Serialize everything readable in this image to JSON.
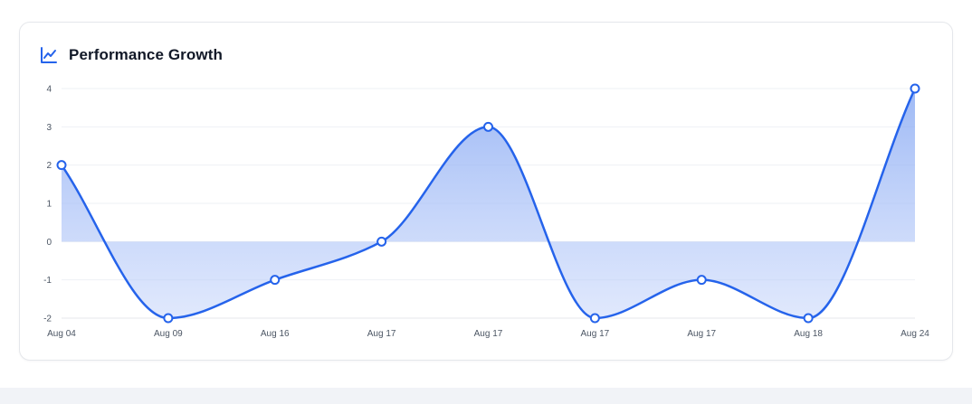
{
  "card": {
    "title": "Performance Growth",
    "icon": "trend-line-icon"
  },
  "colors": {
    "line": "#2563eb",
    "area_fill": "#93b4f5",
    "grid": "#eef0f4",
    "axis_text": "#4b5563"
  },
  "chart_data": {
    "type": "area",
    "title": "Performance Growth",
    "xlabel": "",
    "ylabel": "",
    "categories": [
      "Aug 04",
      "Aug 09",
      "Aug 16",
      "Aug 17",
      "Aug 17",
      "Aug 17",
      "Aug 17",
      "Aug 18",
      "Aug 24"
    ],
    "values": [
      2,
      -2,
      -1,
      0,
      3,
      -2,
      -1,
      -2,
      4
    ],
    "yticks": [
      4,
      3,
      2,
      1,
      0,
      -1,
      -2
    ],
    "ylim": [
      -2,
      4
    ],
    "grid": true,
    "legend": "none",
    "smooth": true,
    "markers": "hollow-circle"
  }
}
